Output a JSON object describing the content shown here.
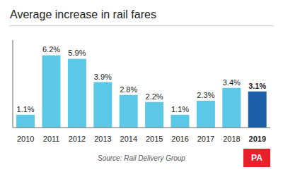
{
  "chart_data": {
    "type": "bar",
    "title": "Average increase in rail fares",
    "categories": [
      "2010",
      "2011",
      "2012",
      "2013",
      "2014",
      "2015",
      "2016",
      "2017",
      "2018",
      "2019"
    ],
    "values": [
      1.1,
      6.2,
      5.9,
      3.9,
      2.8,
      2.2,
      1.1,
      2.3,
      3.4,
      3.1
    ],
    "value_labels": [
      "1.1%",
      "6.2%",
      "5.9%",
      "3.9%",
      "2.8%",
      "2.2%",
      "1.1%",
      "2.3%",
      "3.4%",
      "3.1%"
    ],
    "colors": [
      "#5bc8e8",
      "#5bc8e8",
      "#5bc8e8",
      "#5bc8e8",
      "#5bc8e8",
      "#5bc8e8",
      "#5bc8e8",
      "#5bc8e8",
      "#5bc8e8",
      "#1a5fa8"
    ],
    "ylim": [
      0,
      7.5
    ],
    "grid": false,
    "data_labels": true,
    "tick_labels": "x",
    "annotations": [
      "Source: Rail Delivery Group",
      "PA"
    ]
  }
}
